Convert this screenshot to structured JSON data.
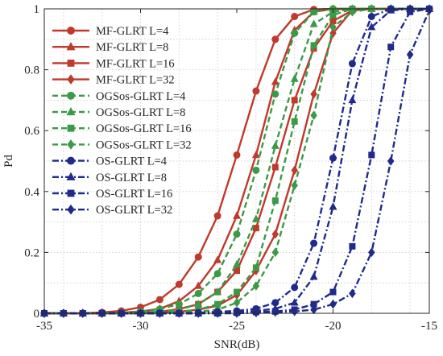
{
  "chart_data": {
    "type": "line",
    "xlabel": "SNR(dB)",
    "ylabel": "Pd",
    "xlim": [
      -35,
      -15
    ],
    "ylim": [
      0,
      1
    ],
    "xticks": [
      -35,
      -30,
      -25,
      -20,
      -15
    ],
    "yticks": [
      0,
      0.2,
      0.4,
      0.6,
      0.8,
      1
    ],
    "xtick_labels": [
      "-35",
      "-30",
      "-25",
      "-20",
      "-15"
    ],
    "ytick_labels": [
      "0",
      "0.2",
      "0.4",
      "0.6",
      "0.8",
      "1"
    ],
    "grid": true,
    "legend_position": "top-left",
    "x": [
      -35,
      -34,
      -33,
      -32,
      -31,
      -30,
      -29,
      -28,
      -27,
      -26,
      -25,
      -24,
      -23,
      -22,
      -21,
      -20,
      -19,
      -18,
      -17,
      -16,
      -15
    ],
    "series": [
      {
        "name": "MF-GLRT L=4",
        "color": "#c0392b",
        "style": "solid",
        "marker": "circle",
        "values": [
          0,
          0,
          0,
          0.003,
          0.008,
          0.02,
          0.045,
          0.095,
          0.185,
          0.32,
          0.52,
          0.73,
          0.9,
          0.975,
          0.998,
          1,
          1,
          1,
          1,
          1,
          1
        ]
      },
      {
        "name": "MF-GLRT L=8",
        "color": "#c0392b",
        "style": "solid",
        "marker": "triangle",
        "values": [
          0,
          0,
          0,
          0,
          0.002,
          0.006,
          0.015,
          0.04,
          0.09,
          0.175,
          0.32,
          0.52,
          0.76,
          0.93,
          0.99,
          1,
          1,
          1,
          1,
          1,
          1
        ]
      },
      {
        "name": "MF-GLRT L=16",
        "color": "#c0392b",
        "style": "solid",
        "marker": "square",
        "values": [
          0,
          0,
          0,
          0,
          0,
          0.002,
          0.005,
          0.014,
          0.03,
          0.07,
          0.14,
          0.28,
          0.48,
          0.7,
          0.87,
          0.96,
          0.995,
          1,
          1,
          1,
          1
        ]
      },
      {
        "name": "MF-GLRT L=32",
        "color": "#c0392b",
        "style": "solid",
        "marker": "diamond",
        "values": [
          0,
          0,
          0,
          0,
          0,
          0,
          0.002,
          0.005,
          0.012,
          0.025,
          0.06,
          0.14,
          0.26,
          0.47,
          0.72,
          0.92,
          0.995,
          1,
          1,
          1,
          1
        ]
      },
      {
        "name": "OGSos-GLRT L=4",
        "color": "#3a9a46",
        "style": "dash",
        "marker": "circle",
        "values": [
          0,
          0,
          0,
          0,
          0.002,
          0.006,
          0.014,
          0.03,
          0.065,
          0.13,
          0.26,
          0.47,
          0.72,
          0.92,
          0.99,
          1,
          1,
          1,
          1,
          1,
          1
        ]
      },
      {
        "name": "OGSos-GLRT L=8",
        "color": "#3a9a46",
        "style": "dash",
        "marker": "triangle",
        "values": [
          0,
          0,
          0,
          0,
          0,
          0.002,
          0.005,
          0.012,
          0.03,
          0.07,
          0.16,
          0.31,
          0.55,
          0.77,
          0.95,
          0.99,
          1,
          1,
          1,
          1,
          1
        ]
      },
      {
        "name": "OGSos-GLRT L=16",
        "color": "#3a9a46",
        "style": "dash",
        "marker": "square",
        "values": [
          0,
          0,
          0,
          0,
          0,
          0,
          0.002,
          0.005,
          0.012,
          0.03,
          0.07,
          0.15,
          0.37,
          0.63,
          0.88,
          0.98,
          1,
          1,
          1,
          1,
          1
        ]
      },
      {
        "name": "OGSos-GLRT L=32",
        "color": "#3a9a46",
        "style": "dash",
        "marker": "diamond",
        "values": [
          0,
          0,
          0,
          0,
          0,
          0,
          0,
          0.002,
          0.005,
          0.012,
          0.035,
          0.09,
          0.2,
          0.42,
          0.65,
          0.94,
          0.99,
          1,
          1,
          1,
          1
        ]
      },
      {
        "name": "OS-GLRT L=4",
        "color": "#1f2a8a",
        "style": "dashdot",
        "marker": "circle",
        "values": [
          0,
          0,
          0,
          0,
          0,
          0,
          0,
          0,
          0.002,
          0.005,
          0.008,
          0.015,
          0.035,
          0.085,
          0.23,
          0.51,
          0.82,
          0.975,
          1,
          1,
          1
        ]
      },
      {
        "name": "OS-GLRT L=8",
        "color": "#1f2a8a",
        "style": "dashdot",
        "marker": "triangle",
        "values": [
          0,
          0,
          0,
          0,
          0,
          0,
          0,
          0,
          0,
          0.002,
          0.004,
          0.008,
          0.015,
          0.035,
          0.12,
          0.35,
          0.7,
          0.94,
          0.995,
          1,
          1
        ]
      },
      {
        "name": "OS-GLRT L=16",
        "color": "#1f2a8a",
        "style": "dashdot",
        "marker": "square",
        "values": [
          0,
          0,
          0,
          0,
          0,
          0,
          0,
          0,
          0,
          0,
          0.002,
          0.004,
          0.006,
          0.012,
          0.03,
          0.07,
          0.22,
          0.52,
          0.875,
          0.99,
          1
        ]
      },
      {
        "name": "OS-GLRT L=32",
        "color": "#1f2a8a",
        "style": "dashdot",
        "marker": "diamond",
        "values": [
          0,
          0,
          0,
          0,
          0,
          0,
          0,
          0,
          0,
          0,
          0,
          0.002,
          0.004,
          0.006,
          0.012,
          0.03,
          0.065,
          0.2,
          0.5,
          0.85,
          0.995
        ]
      }
    ]
  }
}
